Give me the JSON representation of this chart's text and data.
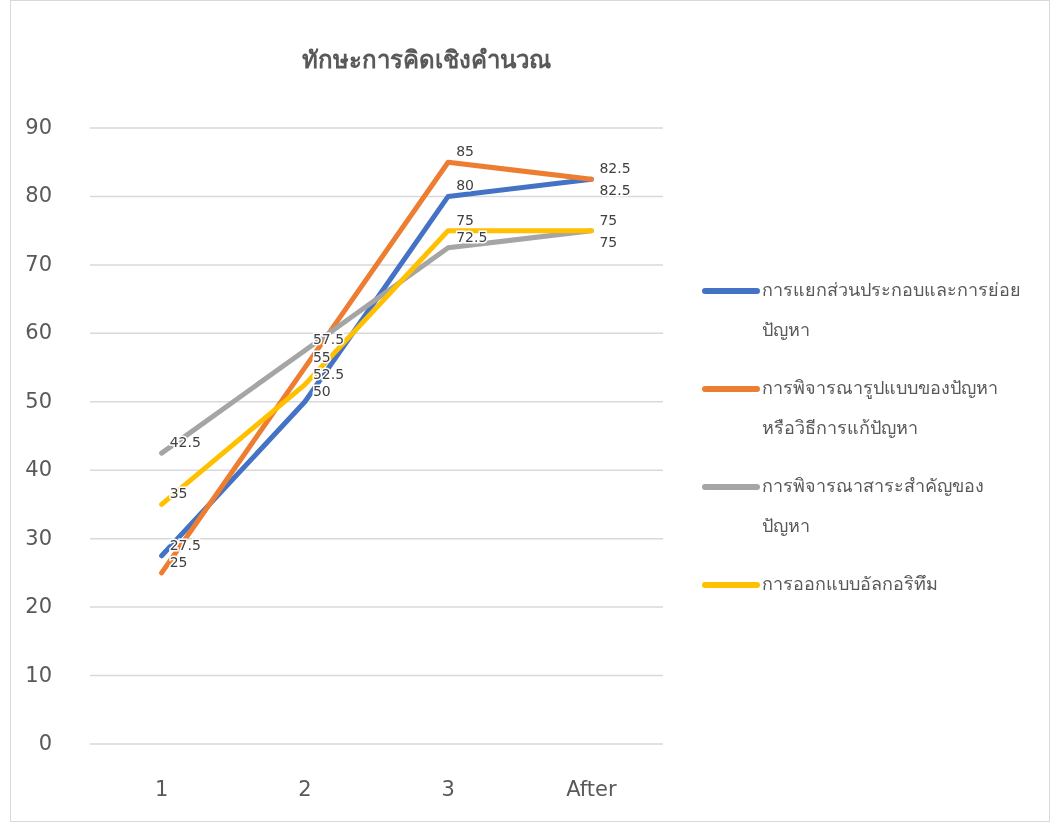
{
  "chart_data": {
    "type": "line",
    "title": "ทักษะการคิดเชิงคำนวณ",
    "categories": [
      "1",
      "2",
      "3",
      "After"
    ],
    "series": [
      {
        "name": "การแยกส่วนประกอบและการย่อยปัญหา",
        "color": "#4472c4",
        "values": [
          27.5,
          50,
          80,
          82.5
        ]
      },
      {
        "name": "การพิจารณารูปแบบของปัญหาหรือวิธีการแก้ปัญหา",
        "color": "#ed7d31",
        "values": [
          25,
          55,
          85,
          82.5
        ]
      },
      {
        "name": "การพิจารณาสาระสำคัญของปัญหา",
        "color": "#a5a5a5",
        "values": [
          42.5,
          57.5,
          72.5,
          75
        ]
      },
      {
        "name": "การออกแบบอัลกอริทึม",
        "color": "#ffc000",
        "values": [
          35,
          52.5,
          75,
          75
        ]
      }
    ],
    "ylim": [
      0,
      90
    ],
    "yticks": [
      0,
      10,
      20,
      30,
      40,
      50,
      60,
      70,
      80,
      90
    ],
    "grid": "y",
    "legend": "right",
    "data_labels": true,
    "line_style": "solid",
    "marker": "none"
  }
}
